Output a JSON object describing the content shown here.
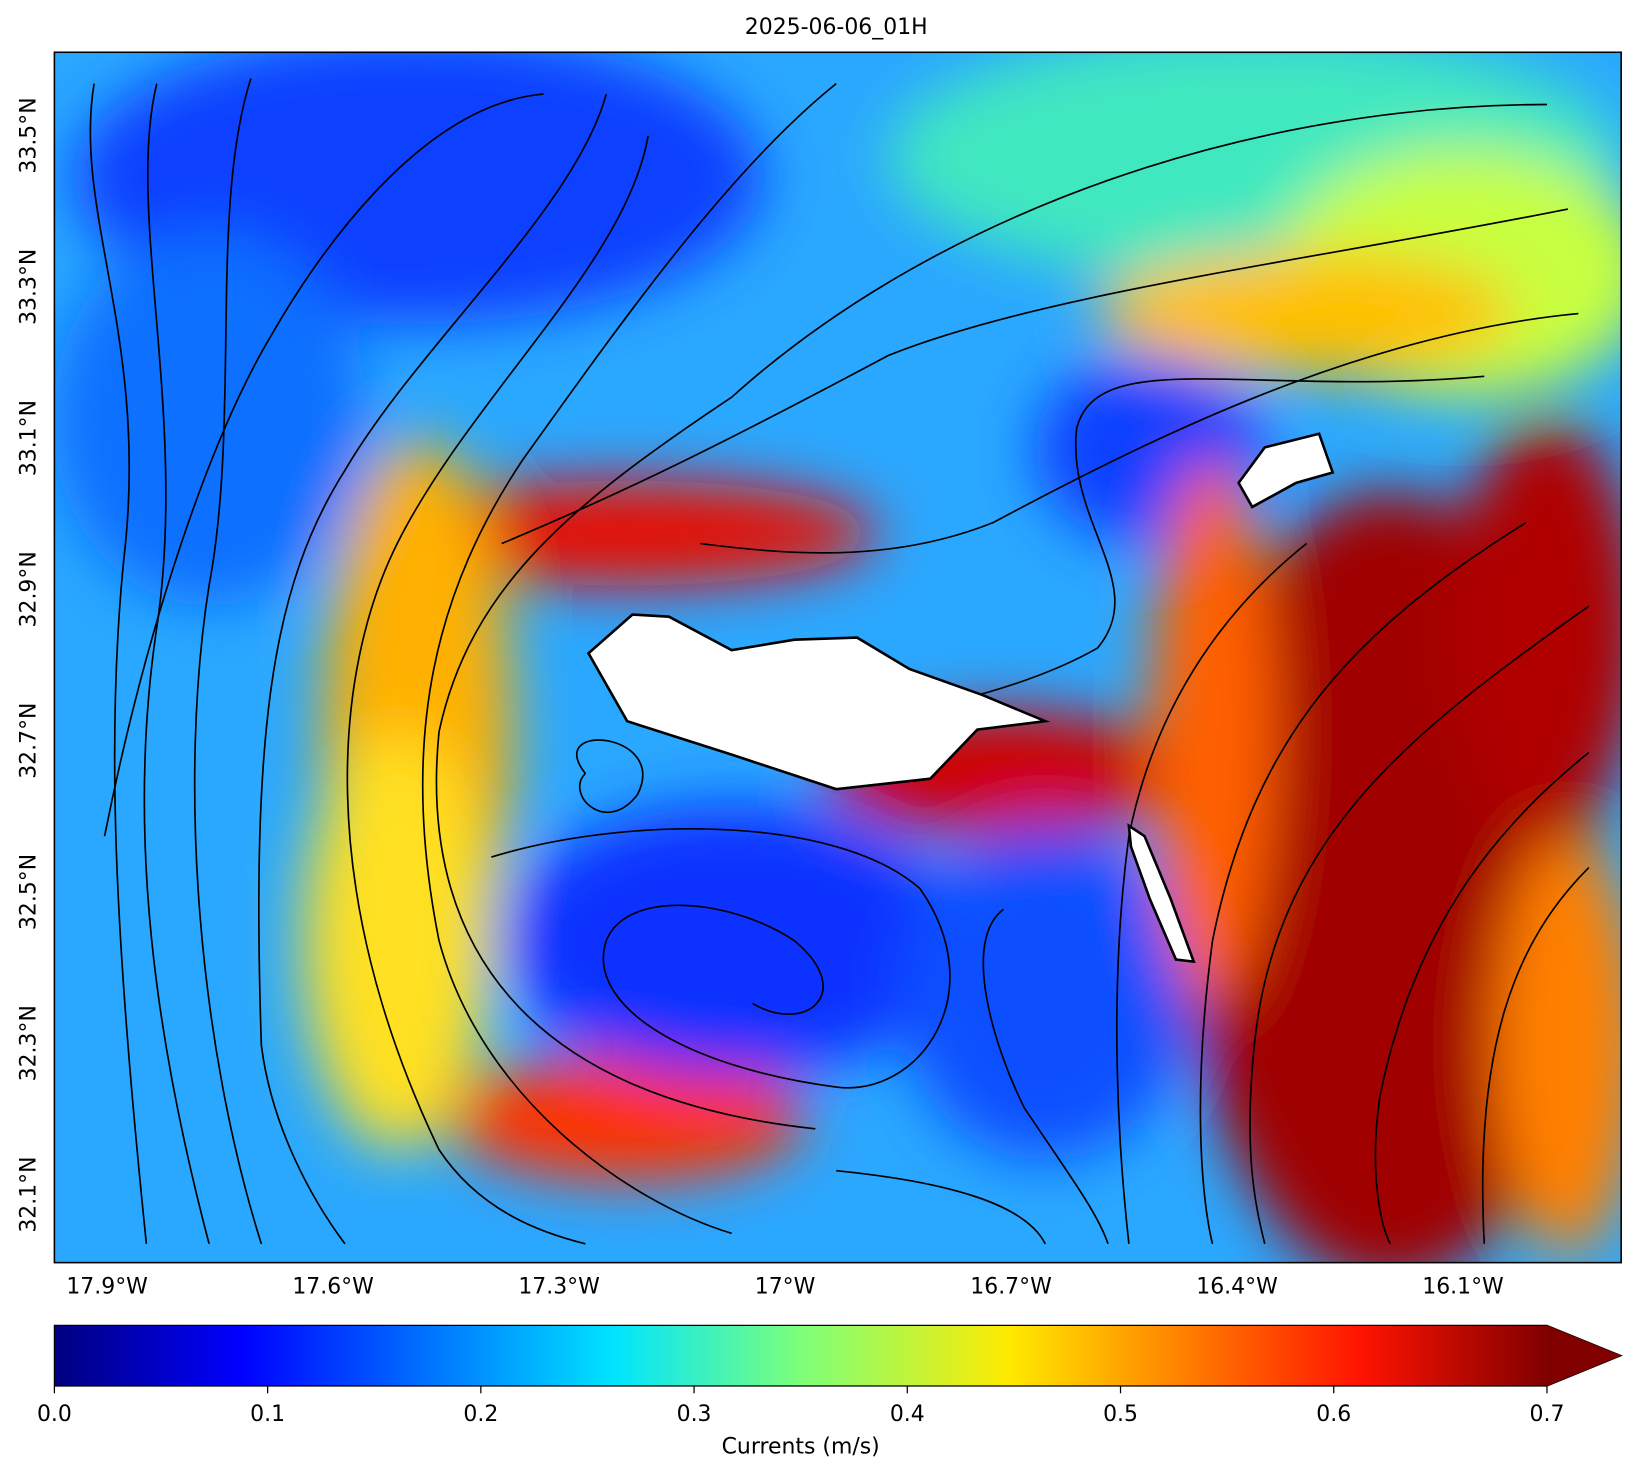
{
  "title": "2025-06-06_01H",
  "map": {
    "xlim": [
      -17.97,
      -15.89
    ],
    "ylim": [
      32.01,
      33.61
    ],
    "xticks": [
      {
        "value": -17.9,
        "label": "17.9°W"
      },
      {
        "value": -17.6,
        "label": "17.6°W"
      },
      {
        "value": -17.3,
        "label": "17.3°W"
      },
      {
        "value": -17.0,
        "label": "17°W"
      },
      {
        "value": -16.7,
        "label": "16.7°W"
      },
      {
        "value": -16.4,
        "label": "16.4°W"
      },
      {
        "value": -16.1,
        "label": "16.1°W"
      }
    ],
    "yticks": [
      {
        "value": 32.1,
        "label": "32.1°N"
      },
      {
        "value": 32.3,
        "label": "32.3°N"
      },
      {
        "value": 32.5,
        "label": "32.5°N"
      },
      {
        "value": 32.7,
        "label": "32.7°N"
      },
      {
        "value": 32.9,
        "label": "32.9°N"
      },
      {
        "value": 33.1,
        "label": "33.1°N"
      },
      {
        "value": 33.3,
        "label": "33.3°N"
      },
      {
        "value": 33.5,
        "label": "33.5°N"
      }
    ]
  },
  "colorbar": {
    "label": "Currents (m/s)",
    "lim": [
      0,
      0.7
    ],
    "ticks": [
      {
        "value": 0,
        "label": "0.0"
      },
      0.1,
      0.2,
      0.3,
      0.4,
      0.5,
      0.6,
      0.7
    ]
  }
}
